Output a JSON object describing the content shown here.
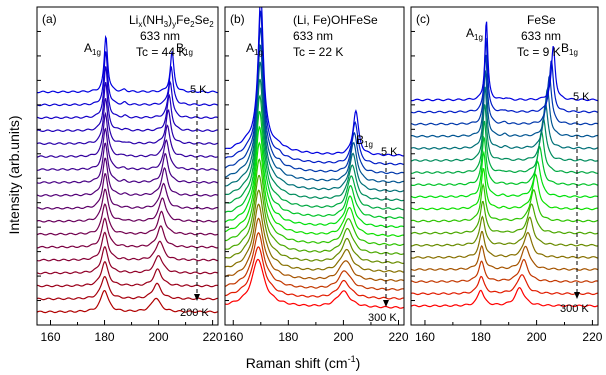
{
  "figure": {
    "ylabel": "Intensity (arb.units)",
    "xlabel_main": "Raman shift (cm",
    "xlabel_sup": "-1",
    "xlabel_tail": ")"
  },
  "chart_data": [
    {
      "type": "line",
      "panel_label": "(a)",
      "sample_prefix": "Li",
      "sample_subs": [
        "x",
        "y",
        "2",
        "2"
      ],
      "sample_parts": [
        "(NH",
        ")",
        "Fe",
        "Se"
      ],
      "wavelength": "633 nm",
      "tc": "Tc = 44 K",
      "peak_labels": [
        {
          "main": "A",
          "sub": "1g"
        },
        {
          "main": "B",
          "sub": "1g"
        }
      ],
      "temp_top": "5 K",
      "temp_bottom": "200 K",
      "xlim": [
        155,
        222
      ],
      "x_ticks": [
        160,
        180,
        200,
        220
      ],
      "num_spectra": 18,
      "peak_positions": {
        "A1g": [
          180,
          180.5
        ],
        "B1g": [
          199,
          205
        ]
      },
      "colors_bottom_to_top": [
        "#b00000",
        "#0000e0"
      ]
    },
    {
      "type": "line",
      "panel_label": "(b)",
      "sample": "(Li, Fe)OHFeSe",
      "wavelength": "633 nm",
      "tc": "Tc = 22 K",
      "peak_labels": [
        {
          "main": "A",
          "sub": "1g"
        },
        {
          "main": "B",
          "sub": "1g"
        }
      ],
      "temp_top": "5 K",
      "temp_bottom": "300 K",
      "xlim": [
        157,
        222
      ],
      "x_ticks": [
        160,
        180,
        200,
        220
      ],
      "num_spectra": 18,
      "peak_positions": {
        "A1g": [
          169,
          170
        ],
        "B1g": [
          200,
          204.5
        ]
      },
      "colors_bottom_to_top": [
        "#ff0000",
        "#00ee00",
        "#0000e0"
      ]
    },
    {
      "type": "line",
      "panel_label": "(c)",
      "sample": "FeSe",
      "wavelength": "633 nm",
      "tc": "Tc = 9 K",
      "peak_labels": [
        {
          "main": "A",
          "sub": "1g"
        },
        {
          "main": "B",
          "sub": "1g"
        }
      ],
      "temp_top": "5 K",
      "temp_bottom": "300 K",
      "xlim": [
        155,
        222
      ],
      "x_ticks": [
        160,
        180,
        200,
        220
      ],
      "num_spectra": 18,
      "peak_positions": {
        "A1g": [
          180,
          182
        ],
        "B1g": [
          194,
          206
        ]
      },
      "colors_bottom_to_top": [
        "#ff0000",
        "#00ee00",
        "#0000e0"
      ]
    }
  ]
}
